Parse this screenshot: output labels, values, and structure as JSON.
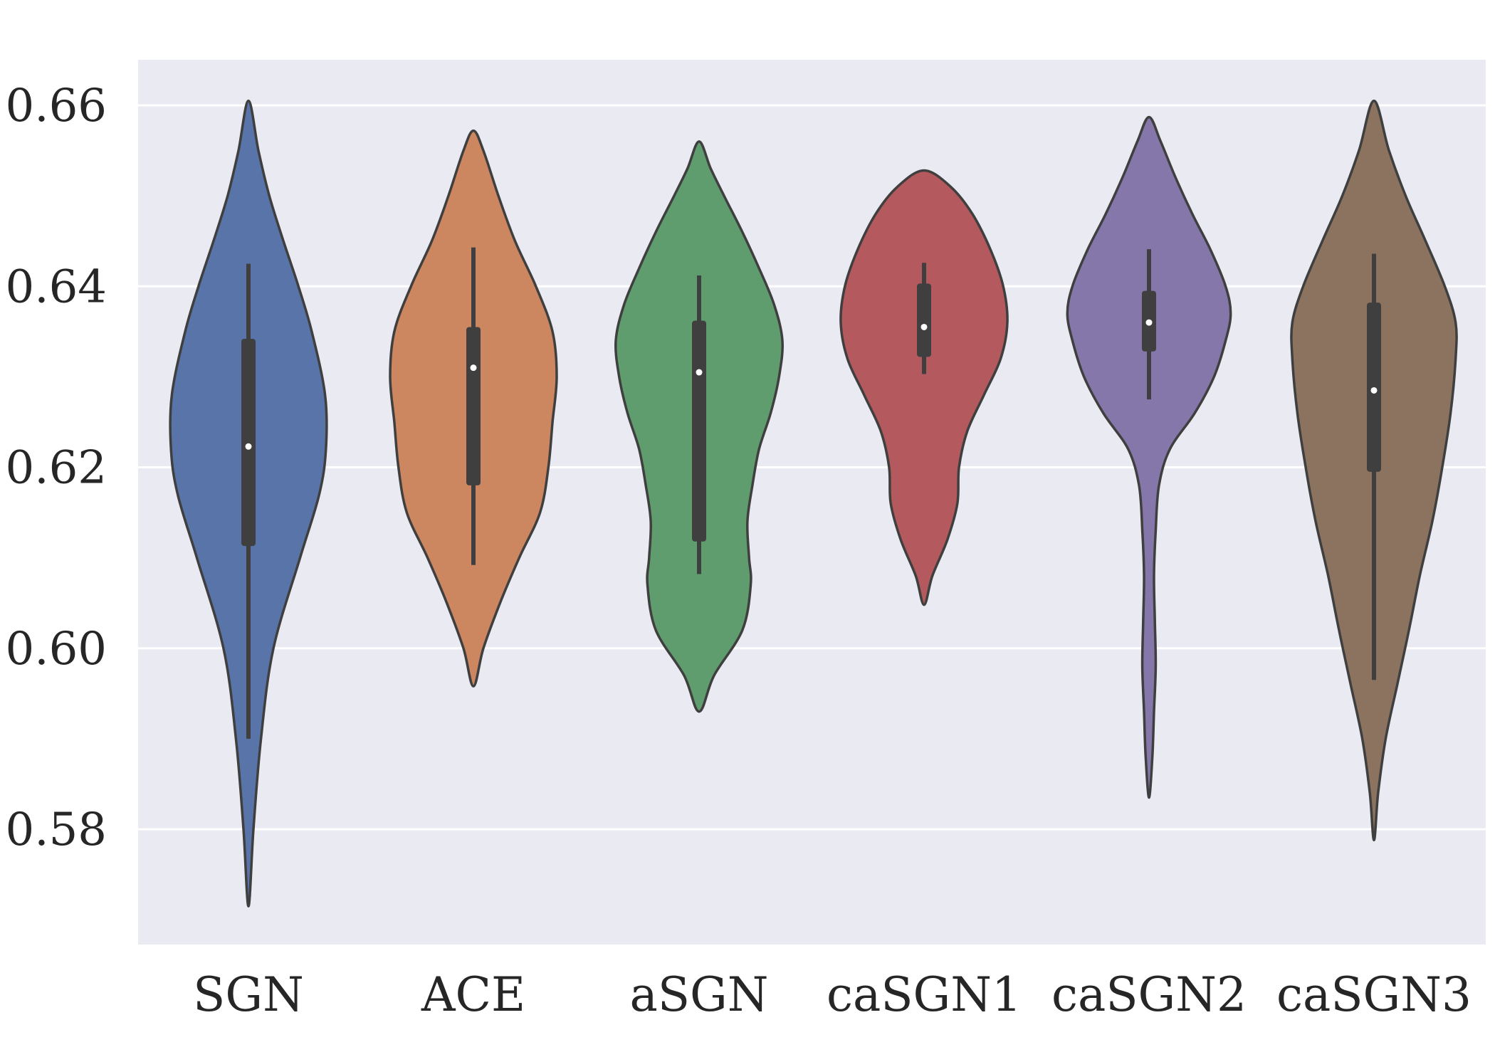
{
  "chart_data": {
    "type": "violin",
    "title": "",
    "xlabel": "",
    "ylabel": "",
    "ylim": [
      0.568,
      0.665
    ],
    "yticks": [
      "0.58",
      "0.60",
      "0.62",
      "0.64",
      "0.66"
    ],
    "background": "#EAEAF2",
    "grid": true,
    "series": [
      {
        "name": "SGN",
        "color": "#5874A8",
        "min": 0.5715,
        "max": 0.6605,
        "median": 0.6223,
        "q1": 0.6113,
        "q3": 0.6342,
        "whisker_low": 0.59,
        "whisker_high": 0.6425,
        "profile": [
          [
            0.5715,
            0.0
          ],
          [
            0.58,
            0.06
          ],
          [
            0.59,
            0.15
          ],
          [
            0.6,
            0.3
          ],
          [
            0.61,
            0.62
          ],
          [
            0.617,
            0.85
          ],
          [
            0.622,
            0.93
          ],
          [
            0.628,
            0.92
          ],
          [
            0.635,
            0.76
          ],
          [
            0.64,
            0.6
          ],
          [
            0.645,
            0.42
          ],
          [
            0.65,
            0.25
          ],
          [
            0.655,
            0.12
          ],
          [
            0.6605,
            0.0
          ]
        ]
      },
      {
        "name": "ACE",
        "color": "#CC8660",
        "min": 0.5958,
        "max": 0.6572,
        "median": 0.631,
        "q1": 0.618,
        "q3": 0.6355,
        "whisker_low": 0.6092,
        "whisker_high": 0.6443,
        "profile": [
          [
            0.5958,
            0.0
          ],
          [
            0.6,
            0.12
          ],
          [
            0.605,
            0.32
          ],
          [
            0.61,
            0.55
          ],
          [
            0.615,
            0.8
          ],
          [
            0.62,
            0.9
          ],
          [
            0.625,
            0.95
          ],
          [
            0.63,
            1.0
          ],
          [
            0.635,
            0.95
          ],
          [
            0.64,
            0.75
          ],
          [
            0.645,
            0.5
          ],
          [
            0.65,
            0.3
          ],
          [
            0.655,
            0.12
          ],
          [
            0.6572,
            0.0
          ]
        ]
      },
      {
        "name": "aSGN",
        "color": "#5F9C6E",
        "min": 0.593,
        "max": 0.656,
        "median": 0.6305,
        "q1": 0.6118,
        "q3": 0.6362,
        "whisker_low": 0.6082,
        "whisker_high": 0.6412,
        "profile": [
          [
            0.593,
            0.0
          ],
          [
            0.597,
            0.18
          ],
          [
            0.602,
            0.52
          ],
          [
            0.607,
            0.62
          ],
          [
            0.61,
            0.6
          ],
          [
            0.614,
            0.58
          ],
          [
            0.618,
            0.64
          ],
          [
            0.622,
            0.72
          ],
          [
            0.626,
            0.86
          ],
          [
            0.63,
            0.96
          ],
          [
            0.634,
            1.0
          ],
          [
            0.638,
            0.9
          ],
          [
            0.642,
            0.72
          ],
          [
            0.646,
            0.52
          ],
          [
            0.65,
            0.3
          ],
          [
            0.653,
            0.14
          ],
          [
            0.656,
            0.0
          ]
        ]
      },
      {
        "name": "caSGN1",
        "color": "#B4595D",
        "min": 0.6048,
        "max": 0.6528,
        "median": 0.6355,
        "q1": 0.6322,
        "q3": 0.6403,
        "whisker_low": 0.6303,
        "whisker_high": 0.6426,
        "profile": [
          [
            0.6048,
            0.0
          ],
          [
            0.608,
            0.1
          ],
          [
            0.612,
            0.28
          ],
          [
            0.616,
            0.4
          ],
          [
            0.62,
            0.42
          ],
          [
            0.624,
            0.52
          ],
          [
            0.628,
            0.72
          ],
          [
            0.632,
            0.92
          ],
          [
            0.636,
            1.0
          ],
          [
            0.64,
            0.95
          ],
          [
            0.644,
            0.8
          ],
          [
            0.648,
            0.58
          ],
          [
            0.651,
            0.32
          ],
          [
            0.6528,
            0.0
          ]
        ]
      },
      {
        "name": "caSGN2",
        "color": "#8577AA",
        "min": 0.5835,
        "max": 0.6587,
        "median": 0.636,
        "q1": 0.6328,
        "q3": 0.6395,
        "whisker_low": 0.6275,
        "whisker_high": 0.6441,
        "profile": [
          [
            0.5835,
            0.0
          ],
          [
            0.588,
            0.04
          ],
          [
            0.593,
            0.06
          ],
          [
            0.598,
            0.08
          ],
          [
            0.603,
            0.07
          ],
          [
            0.608,
            0.06
          ],
          [
            0.613,
            0.08
          ],
          [
            0.618,
            0.12
          ],
          [
            0.622,
            0.25
          ],
          [
            0.626,
            0.55
          ],
          [
            0.63,
            0.78
          ],
          [
            0.634,
            0.92
          ],
          [
            0.637,
            0.98
          ],
          [
            0.64,
            0.92
          ],
          [
            0.644,
            0.74
          ],
          [
            0.648,
            0.52
          ],
          [
            0.652,
            0.32
          ],
          [
            0.656,
            0.14
          ],
          [
            0.6587,
            0.0
          ]
        ]
      },
      {
        "name": "caSGN3",
        "color": "#8C7360",
        "min": 0.5788,
        "max": 0.6605,
        "median": 0.6285,
        "q1": 0.6195,
        "q3": 0.6382,
        "whisker_low": 0.5965,
        "whisker_high": 0.6436,
        "profile": [
          [
            0.5788,
            0.0
          ],
          [
            0.584,
            0.05
          ],
          [
            0.59,
            0.14
          ],
          [
            0.596,
            0.28
          ],
          [
            0.602,
            0.42
          ],
          [
            0.608,
            0.55
          ],
          [
            0.614,
            0.7
          ],
          [
            0.62,
            0.82
          ],
          [
            0.626,
            0.92
          ],
          [
            0.632,
            0.98
          ],
          [
            0.636,
            0.98
          ],
          [
            0.64,
            0.85
          ],
          [
            0.645,
            0.62
          ],
          [
            0.65,
            0.38
          ],
          [
            0.655,
            0.18
          ],
          [
            0.6605,
            0.0
          ]
        ]
      }
    ]
  }
}
